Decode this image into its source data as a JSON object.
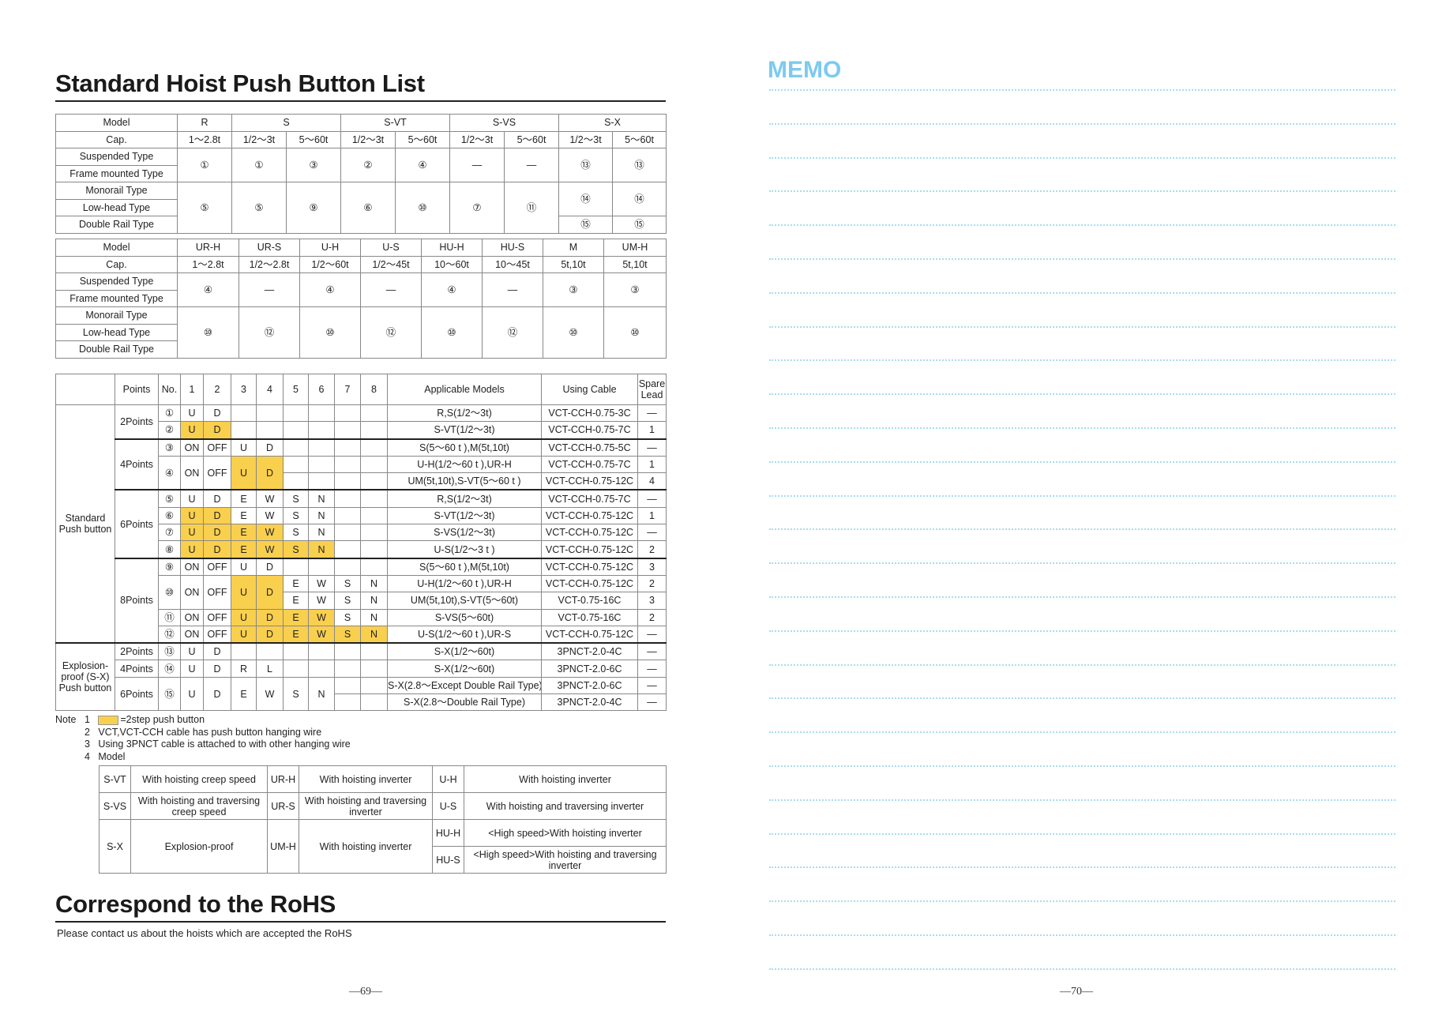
{
  "left_page": {
    "title": "Standard Hoist Push Button List",
    "table1": [
      [
        {
          "t": "Model"
        },
        {
          "t": "R"
        },
        {
          "t": "S",
          "cs": 2
        },
        {
          "t": "S-VT",
          "cs": 2
        },
        {
          "t": "S-VS",
          "cs": 2
        },
        {
          "t": "S-X",
          "cs": 2
        }
      ],
      [
        {
          "t": "Cap."
        },
        {
          "t": "1～2.8t"
        },
        {
          "t": "1/2～3t"
        },
        {
          "t": "5～60t"
        },
        {
          "t": "1/2～3t"
        },
        {
          "t": "5～60t"
        },
        {
          "t": "1/2～3t"
        },
        {
          "t": "5～60t"
        },
        {
          "t": "1/2～3t"
        },
        {
          "t": "5～60t"
        }
      ],
      [
        {
          "t": "Suspended Type"
        },
        {
          "t": "①",
          "rs": 2
        },
        {
          "t": "①",
          "rs": 2
        },
        {
          "t": "③",
          "rs": 2
        },
        {
          "t": "②",
          "rs": 2
        },
        {
          "t": "④",
          "rs": 2
        },
        {
          "t": "—",
          "rs": 2
        },
        {
          "t": "—",
          "rs": 2
        },
        {
          "t": "⑬",
          "rs": 2
        },
        {
          "t": "⑬",
          "rs": 2
        }
      ],
      [
        {
          "t": "Frame mounted Type"
        }
      ],
      [
        {
          "t": "Monorail Type"
        },
        {
          "t": "⑤",
          "rs": 3
        },
        {
          "t": "⑤",
          "rs": 3
        },
        {
          "t": "⑨",
          "rs": 3
        },
        {
          "t": "⑥",
          "rs": 3
        },
        {
          "t": "⑩",
          "rs": 3
        },
        {
          "t": "⑦",
          "rs": 3
        },
        {
          "t": "⑪",
          "rs": 3
        },
        {
          "t": "⑭",
          "rs": 2
        },
        {
          "t": "⑭",
          "rs": 2
        }
      ],
      [
        {
          "t": "Low-head Type"
        }
      ],
      [
        {
          "t": "Double Rail Type"
        },
        {
          "t": "⑮"
        },
        {
          "t": "⑮"
        }
      ]
    ],
    "table2": [
      [
        {
          "t": "Model"
        },
        {
          "t": "UR-H"
        },
        {
          "t": "UR-S"
        },
        {
          "t": "U-H"
        },
        {
          "t": "U-S"
        },
        {
          "t": "HU-H"
        },
        {
          "t": "HU-S"
        },
        {
          "t": "M"
        },
        {
          "t": "UM-H"
        }
      ],
      [
        {
          "t": "Cap."
        },
        {
          "t": "1～2.8t"
        },
        {
          "t": "1/2～2.8t"
        },
        {
          "t": "1/2～60t"
        },
        {
          "t": "1/2～45t"
        },
        {
          "t": "10～60t"
        },
        {
          "t": "10～45t"
        },
        {
          "t": "5t,10t"
        },
        {
          "t": "5t,10t"
        }
      ],
      [
        {
          "t": "Suspended Type"
        },
        {
          "t": "④",
          "rs": 2
        },
        {
          "t": "—",
          "rs": 2
        },
        {
          "t": "④",
          "rs": 2
        },
        {
          "t": "—",
          "rs": 2
        },
        {
          "t": "④",
          "rs": 2
        },
        {
          "t": "—",
          "rs": 2
        },
        {
          "t": "③",
          "rs": 2
        },
        {
          "t": "③",
          "rs": 2
        }
      ],
      [
        {
          "t": "Frame mounted Type"
        }
      ],
      [
        {
          "t": "Monorail Type"
        },
        {
          "t": "⑩",
          "rs": 3
        },
        {
          "t": "⑫",
          "rs": 3
        },
        {
          "t": "⑩",
          "rs": 3
        },
        {
          "t": "⑫",
          "rs": 3
        },
        {
          "t": "⑩",
          "rs": 3
        },
        {
          "t": "⑫",
          "rs": 3
        },
        {
          "t": "⑩",
          "rs": 3
        },
        {
          "t": "⑩",
          "rs": 3
        }
      ],
      [
        {
          "t": "Low-head Type"
        }
      ],
      [
        {
          "t": "Double Rail Type"
        }
      ]
    ],
    "table3": [
      {
        "cls": "head",
        "cells": [
          {
            "t": ""
          },
          {
            "t": "Points"
          },
          {
            "t": "No."
          },
          {
            "t": "1"
          },
          {
            "t": "2"
          },
          {
            "t": "3"
          },
          {
            "t": "4"
          },
          {
            "t": "5"
          },
          {
            "t": "6"
          },
          {
            "t": "7"
          },
          {
            "t": "8"
          },
          {
            "t": "Applicable Models"
          },
          {
            "t": "Using Cable"
          },
          {
            "t": "Spare Lead",
            "wrap": true
          }
        ]
      },
      {
        "cells": [
          {
            "t": "Standard Push button",
            "rs": 14,
            "wrap": true
          },
          {
            "t": "2Points",
            "rs": 2
          },
          {
            "t": "①"
          },
          {
            "t": "U"
          },
          {
            "t": "D"
          },
          {
            "t": ""
          },
          {
            "t": ""
          },
          {
            "t": ""
          },
          {
            "t": ""
          },
          {
            "t": ""
          },
          {
            "t": ""
          },
          {
            "t": "R,S(1/2～3t)"
          },
          {
            "t": "VCT-CCH-0.75-3C"
          },
          {
            "t": "—"
          }
        ]
      },
      {
        "cells": [
          {
            "t": "②"
          },
          {
            "t": "U",
            "hl": true
          },
          {
            "t": "D",
            "hl": true
          },
          {
            "t": ""
          },
          {
            "t": ""
          },
          {
            "t": ""
          },
          {
            "t": ""
          },
          {
            "t": ""
          },
          {
            "t": ""
          },
          {
            "t": "S-VT(1/2～3t)"
          },
          {
            "t": "VCT-CCH-0.75-7C"
          },
          {
            "t": "1"
          }
        ]
      },
      {
        "cls": "thick",
        "cells": [
          {
            "t": "4Points",
            "rs": 3
          },
          {
            "t": "③"
          },
          {
            "t": "ON"
          },
          {
            "t": "OFF"
          },
          {
            "t": "U"
          },
          {
            "t": "D"
          },
          {
            "t": ""
          },
          {
            "t": ""
          },
          {
            "t": ""
          },
          {
            "t": ""
          },
          {
            "t": "S(5～60 t ),M(5t,10t)"
          },
          {
            "t": "VCT-CCH-0.75-5C"
          },
          {
            "t": "—"
          }
        ]
      },
      {
        "cells": [
          {
            "t": "④",
            "rs": 2
          },
          {
            "t": "ON",
            "rs": 2
          },
          {
            "t": "OFF",
            "rs": 2
          },
          {
            "t": "U",
            "rs": 2,
            "hl": true
          },
          {
            "t": "D",
            "rs": 2,
            "hl": true
          },
          {
            "t": ""
          },
          {
            "t": ""
          },
          {
            "t": ""
          },
          {
            "t": ""
          },
          {
            "t": "U-H(1/2～60 t ),UR-H"
          },
          {
            "t": "VCT-CCH-0.75-7C"
          },
          {
            "t": "1"
          }
        ]
      },
      {
        "cells": [
          {
            "t": ""
          },
          {
            "t": ""
          },
          {
            "t": ""
          },
          {
            "t": ""
          },
          {
            "t": "UM(5t,10t),S-VT(5～60 t )"
          },
          {
            "t": "VCT-CCH-0.75-12C"
          },
          {
            "t": "4"
          }
        ]
      },
      {
        "cls": "thick",
        "cells": [
          {
            "t": "6Points",
            "rs": 4
          },
          {
            "t": "⑤"
          },
          {
            "t": "U"
          },
          {
            "t": "D"
          },
          {
            "t": "E"
          },
          {
            "t": "W"
          },
          {
            "t": "S"
          },
          {
            "t": "N"
          },
          {
            "t": ""
          },
          {
            "t": ""
          },
          {
            "t": "R,S(1/2～3t)"
          },
          {
            "t": "VCT-CCH-0.75-7C"
          },
          {
            "t": "—"
          }
        ]
      },
      {
        "cells": [
          {
            "t": "⑥"
          },
          {
            "t": "U",
            "hl": true
          },
          {
            "t": "D",
            "hl": true
          },
          {
            "t": "E"
          },
          {
            "t": "W"
          },
          {
            "t": "S"
          },
          {
            "t": "N"
          },
          {
            "t": ""
          },
          {
            "t": ""
          },
          {
            "t": "S-VT(1/2～3t)"
          },
          {
            "t": "VCT-CCH-0.75-12C"
          },
          {
            "t": "1"
          }
        ]
      },
      {
        "cells": [
          {
            "t": "⑦"
          },
          {
            "t": "U",
            "hl": true
          },
          {
            "t": "D",
            "hl": true
          },
          {
            "t": "E",
            "hl": true
          },
          {
            "t": "W",
            "hl": true
          },
          {
            "t": "S"
          },
          {
            "t": "N"
          },
          {
            "t": ""
          },
          {
            "t": ""
          },
          {
            "t": "S-VS(1/2～3t)"
          },
          {
            "t": "VCT-CCH-0.75-12C"
          },
          {
            "t": "—"
          }
        ]
      },
      {
        "cells": [
          {
            "t": "⑧"
          },
          {
            "t": "U",
            "hl": true
          },
          {
            "t": "D",
            "hl": true
          },
          {
            "t": "E",
            "hl": true
          },
          {
            "t": "W",
            "hl": true
          },
          {
            "t": "S",
            "hl": true
          },
          {
            "t": "N",
            "hl": true
          },
          {
            "t": ""
          },
          {
            "t": ""
          },
          {
            "t": "U-S(1/2～3 t )"
          },
          {
            "t": "VCT-CCH-0.75-12C"
          },
          {
            "t": "2"
          }
        ]
      },
      {
        "cls": "thick",
        "cells": [
          {
            "t": "8Points",
            "rs": 5
          },
          {
            "t": "⑨"
          },
          {
            "t": "ON"
          },
          {
            "t": "OFF"
          },
          {
            "t": "U"
          },
          {
            "t": "D"
          },
          {
            "t": ""
          },
          {
            "t": ""
          },
          {
            "t": ""
          },
          {
            "t": ""
          },
          {
            "t": "S(5～60 t ),M(5t,10t)"
          },
          {
            "t": "VCT-CCH-0.75-12C"
          },
          {
            "t": "3"
          }
        ]
      },
      {
        "cells": [
          {
            "t": "⑩",
            "rs": 2
          },
          {
            "t": "ON",
            "rs": 2
          },
          {
            "t": "OFF",
            "rs": 2
          },
          {
            "t": "U",
            "rs": 2,
            "hl": true
          },
          {
            "t": "D",
            "rs": 2,
            "hl": true
          },
          {
            "t": "E"
          },
          {
            "t": "W"
          },
          {
            "t": "S"
          },
          {
            "t": "N"
          },
          {
            "t": "U-H(1/2～60 t ),UR-H"
          },
          {
            "t": "VCT-CCH-0.75-12C"
          },
          {
            "t": "2"
          }
        ]
      },
      {
        "cells": [
          {
            "t": "E"
          },
          {
            "t": "W"
          },
          {
            "t": "S"
          },
          {
            "t": "N"
          },
          {
            "t": "UM(5t,10t),S-VT(5～60t)"
          },
          {
            "t": "VCT-0.75-16C"
          },
          {
            "t": "3"
          }
        ]
      },
      {
        "cells": [
          {
            "t": "⑪"
          },
          {
            "t": "ON"
          },
          {
            "t": "OFF"
          },
          {
            "t": "U",
            "hl": true
          },
          {
            "t": "D",
            "hl": true
          },
          {
            "t": "E",
            "hl": true
          },
          {
            "t": "W",
            "hl": true
          },
          {
            "t": "S"
          },
          {
            "t": "N"
          },
          {
            "t": "S-VS(5～60t)"
          },
          {
            "t": "VCT-0.75-16C"
          },
          {
            "t": "2"
          }
        ]
      },
      {
        "cells": [
          {
            "t": "⑫"
          },
          {
            "t": "ON"
          },
          {
            "t": "OFF"
          },
          {
            "t": "U",
            "hl": true
          },
          {
            "t": "D",
            "hl": true
          },
          {
            "t": "E",
            "hl": true
          },
          {
            "t": "W",
            "hl": true
          },
          {
            "t": "S",
            "hl": true
          },
          {
            "t": "N",
            "hl": true
          },
          {
            "t": "U-S(1/2～60 t ),UR-S"
          },
          {
            "t": "VCT-CCH-0.75-12C"
          },
          {
            "t": "—"
          }
        ]
      },
      {
        "cls": "thick",
        "cells": [
          {
            "t": "Explosion-proof (S-X) Push button",
            "rs": 4,
            "wrap": true
          },
          {
            "t": "2Points"
          },
          {
            "t": "⑬"
          },
          {
            "t": "U"
          },
          {
            "t": "D"
          },
          {
            "t": ""
          },
          {
            "t": ""
          },
          {
            "t": ""
          },
          {
            "t": ""
          },
          {
            "t": ""
          },
          {
            "t": ""
          },
          {
            "t": "S-X(1/2～60t)"
          },
          {
            "t": "3PNCT-2.0-4C"
          },
          {
            "t": "—"
          }
        ]
      },
      {
        "cells": [
          {
            "t": "4Points"
          },
          {
            "t": "⑭"
          },
          {
            "t": "U"
          },
          {
            "t": "D"
          },
          {
            "t": "R"
          },
          {
            "t": "L"
          },
          {
            "t": ""
          },
          {
            "t": ""
          },
          {
            "t": ""
          },
          {
            "t": ""
          },
          {
            "t": "S-X(1/2～60t)"
          },
          {
            "t": "3PNCT-2.0-6C"
          },
          {
            "t": "—"
          }
        ]
      },
      {
        "cells": [
          {
            "t": "6Points",
            "rs": 2
          },
          {
            "t": "⑮",
            "rs": 2
          },
          {
            "t": "U",
            "rs": 2
          },
          {
            "t": "D",
            "rs": 2
          },
          {
            "t": "E",
            "rs": 2
          },
          {
            "t": "W",
            "rs": 2
          },
          {
            "t": "S",
            "rs": 2
          },
          {
            "t": "N",
            "rs": 2
          },
          {
            "t": ""
          },
          {
            "t": ""
          },
          {
            "t": "S-X(2.8～Except Double Rail Type)"
          },
          {
            "t": "3PNCT-2.0-6C"
          },
          {
            "t": "—"
          }
        ]
      },
      {
        "cells": [
          {
            "t": ""
          },
          {
            "t": ""
          },
          {
            "t": "S-X(2.8～Double Rail Type)"
          },
          {
            "t": "3PNCT-2.0-4C"
          },
          {
            "t": "—"
          }
        ]
      }
    ],
    "notes": {
      "label": "Note",
      "items": [
        {
          "num": "1",
          "text": "=2step push button"
        },
        {
          "num": "2",
          "text": "VCT,VCT-CCH cable has push button hanging wire"
        },
        {
          "num": "3",
          "text": "Using 3PNCT cable is attached to with other hanging wire"
        },
        {
          "num": "4",
          "text": "Model"
        }
      ]
    },
    "model_table": [
      [
        {
          "t": "S-VT"
        },
        {
          "t": "With hoisting creep speed"
        },
        {
          "t": "UR-H"
        },
        {
          "t": "With hoisting inverter"
        },
        {
          "t": "U-H"
        },
        {
          "t": "With hoisting inverter"
        }
      ],
      [
        {
          "t": "S-VS"
        },
        {
          "t": "With hoisting and traversing creep speed",
          "wrap": true
        },
        {
          "t": "UR-S"
        },
        {
          "t": "With hoisting and traversing inverter",
          "wrap": true
        },
        {
          "t": "U-S"
        },
        {
          "t": "With hoisting and traversing inverter",
          "wrap": true
        }
      ],
      [
        {
          "t": "S-X",
          "rs": 2
        },
        {
          "t": "Explosion-proof",
          "rs": 2
        },
        {
          "t": "UM-H",
          "rs": 2
        },
        {
          "t": "With hoisting inverter",
          "rs": 2
        },
        {
          "t": "HU-H"
        },
        {
          "t": "<High speed>With hoisting inverter"
        }
      ],
      [
        {
          "t": "HU-S"
        },
        {
          "t": "<High speed>With hoisting and traversing inverter",
          "wrap": true
        }
      ]
    ],
    "rohs_title": "Correspond to the RoHS",
    "rohs_text": "Please contact us about the hoists which are accepted the RoHS",
    "page_number": "—69—"
  },
  "right_page": {
    "title": "MEMO",
    "page_number": "—70—"
  },
  "colors": {
    "highlight": "#f9cf4e",
    "memo_accent": "#7ccaf0"
  }
}
